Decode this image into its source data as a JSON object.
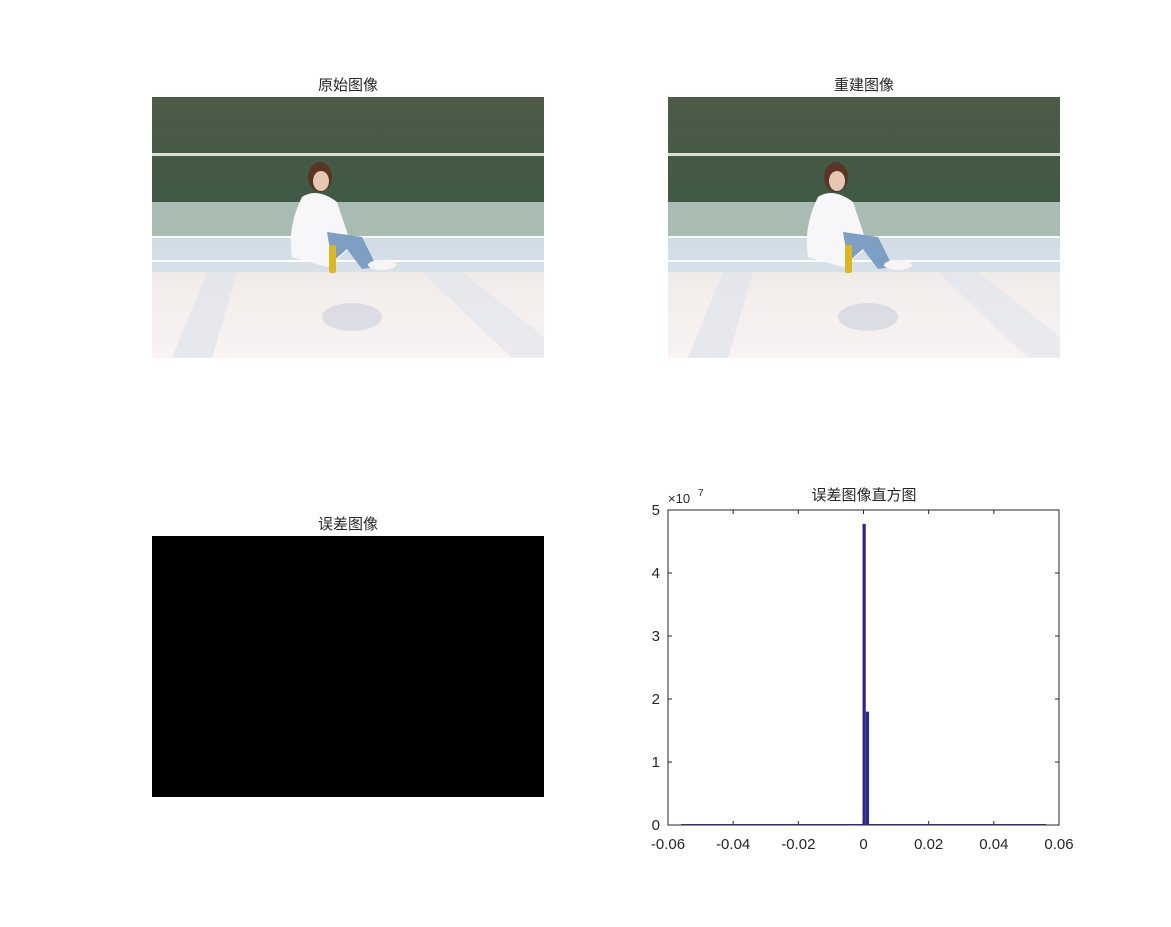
{
  "figure": {
    "panels": [
      {
        "title": "原始图像",
        "content": "photo"
      },
      {
        "title": "重建图像",
        "content": "photo"
      },
      {
        "title": "误差图像",
        "content": "black"
      },
      {
        "title": "误差图像直方图",
        "content": "histogram"
      }
    ]
  },
  "colors": {
    "bar": "#2e2a88",
    "axis": "#262626",
    "error_image": "#000000",
    "wall": "#4d5a46",
    "court_floor": "#d7e1ea",
    "lit_floor": "#f6efee"
  },
  "chart_data": {
    "type": "bar",
    "title": "误差图像直方图",
    "exponent_label": "×10",
    "exponent_power": "7",
    "xlim": [
      -0.06,
      0.06
    ],
    "ylim": [
      0,
      5
    ],
    "y_scale_factor": 10000000,
    "xticks": [
      -0.06,
      -0.04,
      -0.02,
      0,
      0.02,
      0.04,
      0.06
    ],
    "xtick_labels": [
      "-0.06",
      "-0.04",
      "-0.02",
      "0",
      "0.02",
      "0.04",
      "0.06"
    ],
    "yticks": [
      0,
      1,
      2,
      3,
      4,
      5
    ],
    "ytick_labels": [
      "0",
      "1",
      "2",
      "3",
      "4",
      "5"
    ],
    "bins": [
      {
        "x0": -0.0055,
        "x1": -0.0003,
        "value": 0.0
      },
      {
        "x0": -0.0003,
        "x1": 0.0007,
        "value": 4.78
      },
      {
        "x0": 0.0007,
        "x1": 0.0017,
        "value": 1.8
      },
      {
        "x0": 0.0017,
        "x1": 0.0027,
        "value": 0.01
      }
    ],
    "baseline_span": [
      -0.056,
      0.056
    ],
    "grid": false,
    "box": true
  }
}
